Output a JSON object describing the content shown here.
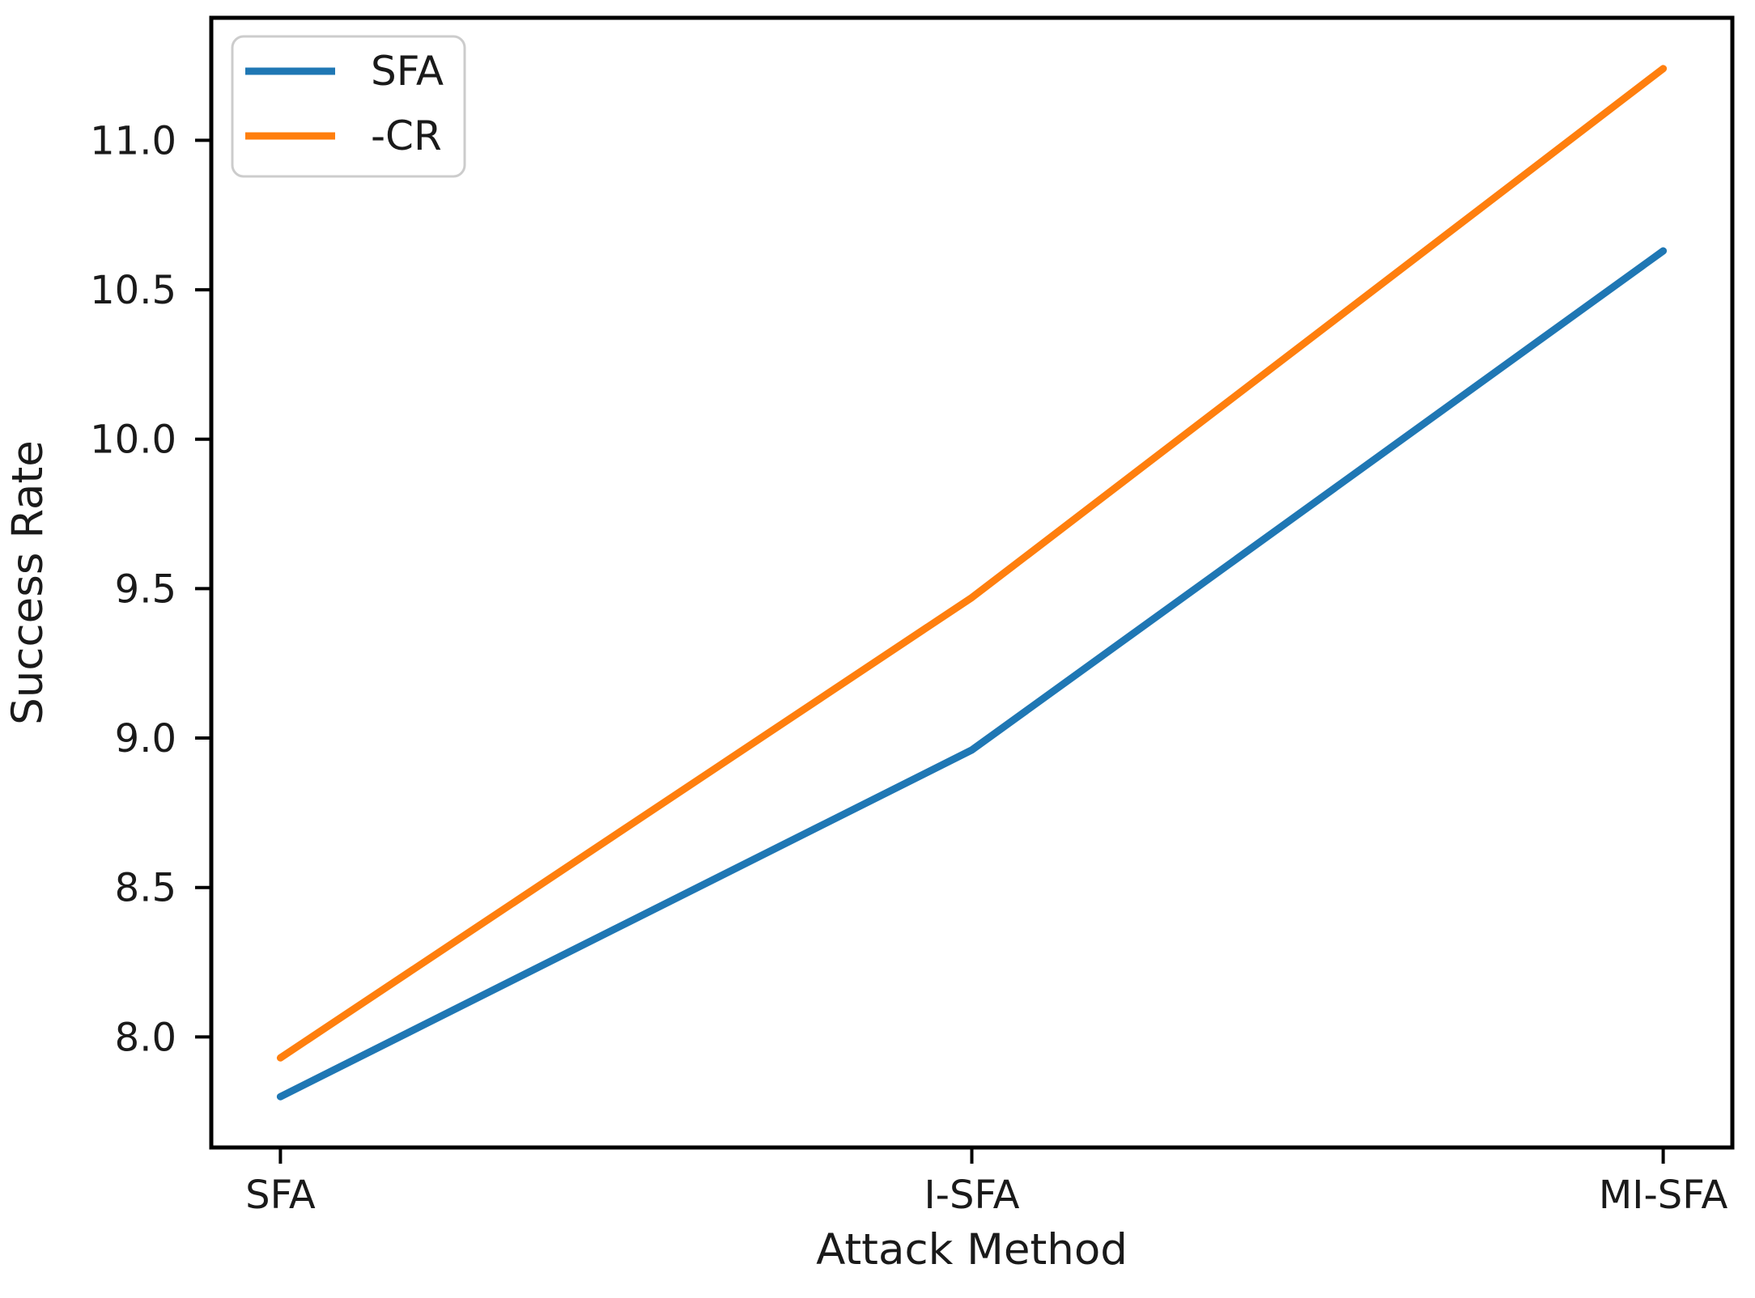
{
  "chart_data": {
    "type": "line",
    "title": "",
    "xlabel": "Attack Method",
    "ylabel": "Success Rate",
    "categories": [
      "SFA",
      "I-SFA",
      "MI-SFA"
    ],
    "series": [
      {
        "name": "SFA",
        "color": "#1f77b4",
        "values": [
          7.8,
          8.96,
          10.63
        ]
      },
      {
        "name": "-CR",
        "color": "#ff7f0e",
        "values": [
          7.93,
          9.47,
          11.24
        ]
      }
    ],
    "yticks": [
      8.0,
      8.5,
      9.0,
      9.5,
      10.0,
      10.5,
      11.0
    ],
    "ylim": [
      7.63,
      11.41
    ],
    "grid": false,
    "legend_position": "upper-left",
    "frame_color": "#000000",
    "tick_label_color": "#1a1a1a",
    "legend_border_color": "#cccccc",
    "background_color": "#ffffff"
  }
}
